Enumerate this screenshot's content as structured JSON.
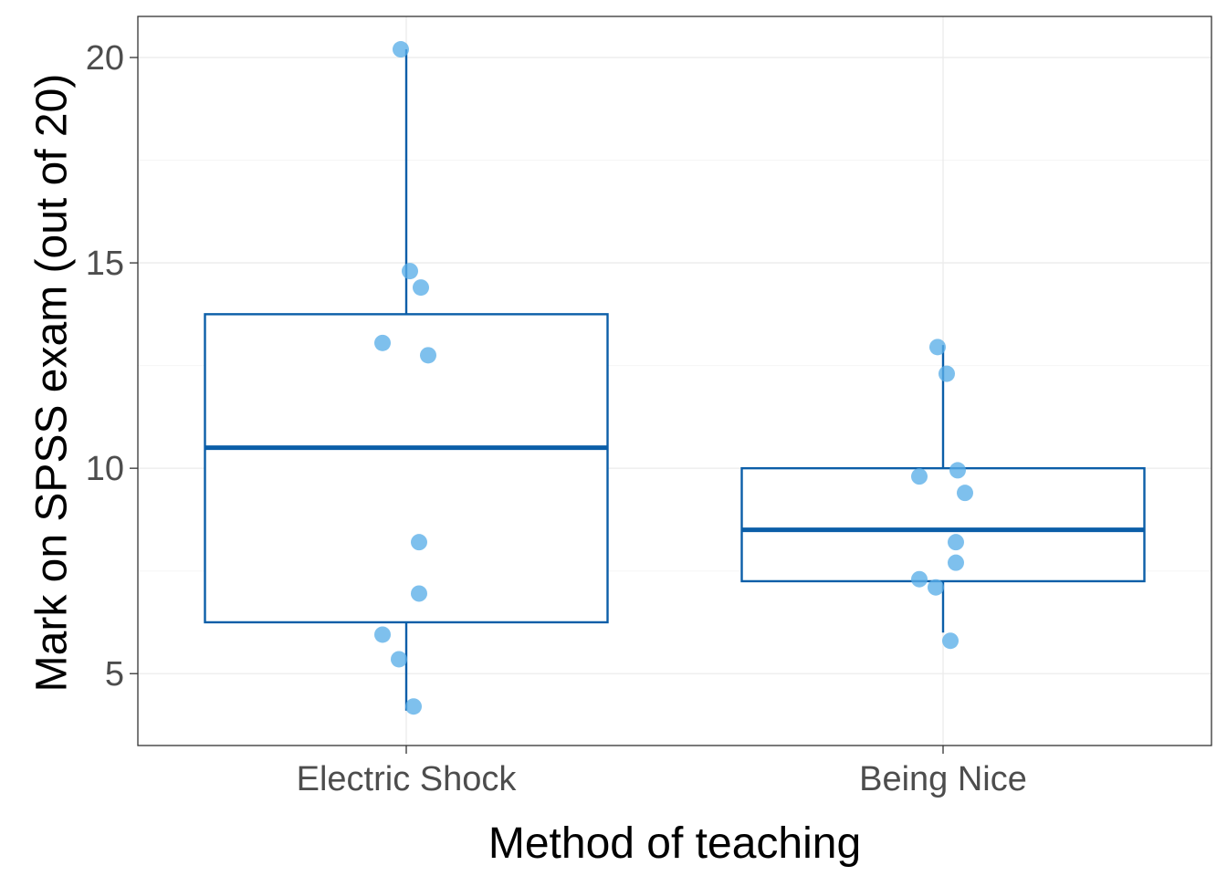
{
  "chart_data": {
    "type": "boxplot",
    "title": "",
    "xlabel": "Method of teaching",
    "ylabel": "Mark on SPSS exam (out of 20)",
    "ylim": [
      3.25,
      21.0
    ],
    "y_ticks": [
      5,
      10,
      15,
      20
    ],
    "y_minor_ticks": [
      7.5,
      12.5,
      17.5
    ],
    "y_tick_labels": [
      "5",
      "10",
      "15",
      "20"
    ],
    "grid": true,
    "legend": "none",
    "colors": {
      "box": "#0b5ea8",
      "points": "#5aaee8",
      "grid_major": "#ebebeb",
      "grid_minor": "#f5f5f5",
      "panel_border": "#333333",
      "tick_label": "#4d4d4d"
    },
    "categories": [
      "Electric Shock",
      "Being Nice"
    ],
    "boxes": [
      {
        "group": "Electric Shock",
        "whisker_low": 4.1,
        "q1": 6.25,
        "median": 10.5,
        "q3": 13.75,
        "whisker_high": 20.2
      },
      {
        "group": "Being Nice",
        "whisker_low": 6.0,
        "q1": 7.25,
        "median": 8.5,
        "q3": 10.0,
        "whisker_high": 13.0
      }
    ],
    "points": [
      {
        "group": "Electric Shock",
        "values": [
          20.2,
          14.8,
          14.4,
          13.05,
          12.75,
          8.2,
          6.95,
          5.95,
          5.35,
          4.2
        ]
      },
      {
        "group": "Being Nice",
        "values": [
          12.95,
          12.3,
          9.95,
          9.8,
          9.4,
          8.2,
          7.7,
          7.3,
          7.1,
          5.8
        ]
      }
    ]
  }
}
